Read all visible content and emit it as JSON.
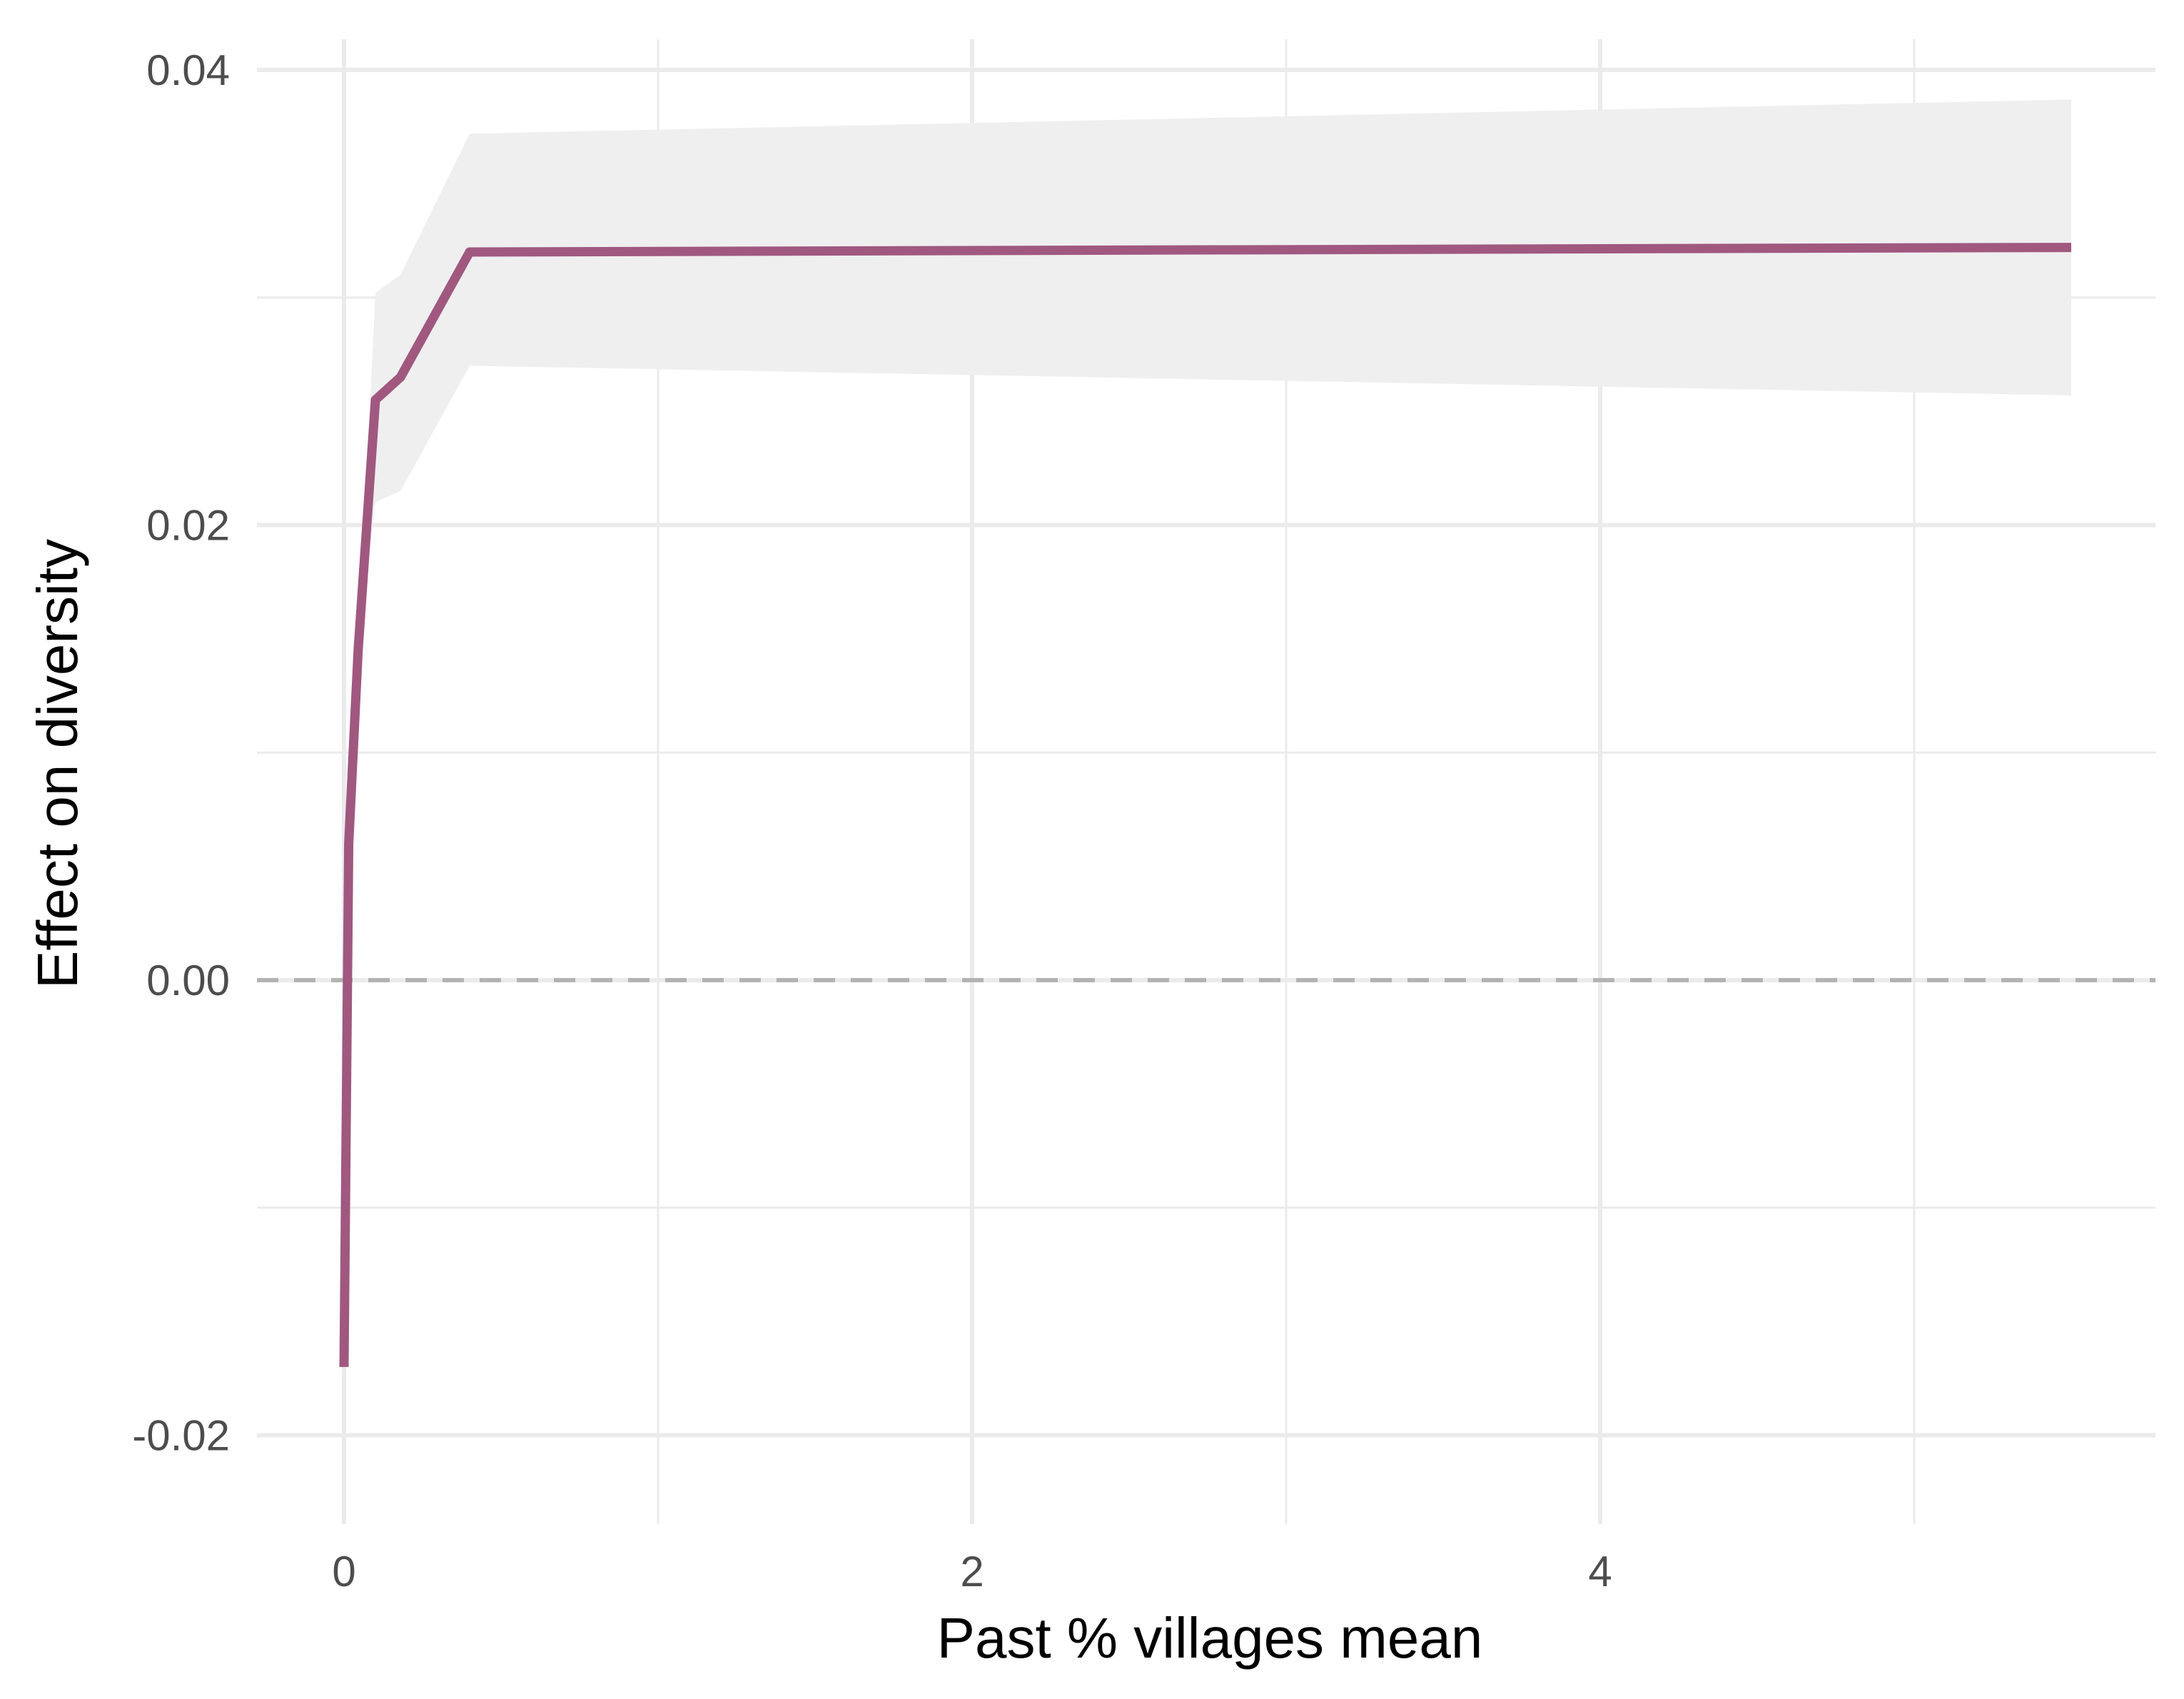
{
  "chart_data": {
    "type": "line",
    "title": "",
    "xlabel": "Past % villages mean",
    "ylabel": "Effect on diversity",
    "xlim": [
      -0.28,
      5.75
    ],
    "ylim": [
      -0.0235,
      0.0415
    ],
    "x_ticks": [
      0,
      2,
      4
    ],
    "x_tick_labels": [
      "0",
      "2",
      "4"
    ],
    "y_ticks": [
      -0.02,
      0.0,
      0.02,
      0.04
    ],
    "y_tick_labels": [
      "-0.02",
      "0.00",
      "0.02",
      "0.04"
    ],
    "grid": true,
    "reference_line": {
      "y": 0,
      "style": "dashed"
    },
    "series": [
      {
        "color": "#a0587f",
        "x": [
          0.0,
          0.015,
          0.045,
          0.1,
          0.18,
          0.4,
          5.5
        ],
        "y": [
          -0.017,
          0.006,
          0.0145,
          0.0255,
          0.0265,
          0.032,
          0.0322
        ],
        "ci_lower": [
          -0.017,
          0.006,
          0.0145,
          0.021,
          0.0215,
          0.027,
          0.0257
        ],
        "ci_upper": [
          -0.017,
          0.006,
          0.0145,
          0.0302,
          0.031,
          0.0372,
          0.0387
        ],
        "ci_color": "#efefef"
      }
    ]
  }
}
